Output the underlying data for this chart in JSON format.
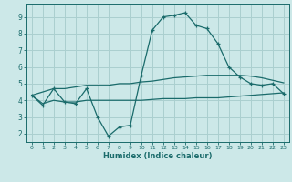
{
  "xlabel": "Humidex (Indice chaleur)",
  "background_color": "#cce8e8",
  "grid_color": "#aacfcf",
  "line_color": "#1a6b6b",
  "xlim": [
    -0.5,
    23.5
  ],
  "ylim": [
    1.5,
    9.8
  ],
  "xticks": [
    0,
    1,
    2,
    3,
    4,
    5,
    6,
    7,
    8,
    9,
    10,
    11,
    12,
    13,
    14,
    15,
    16,
    17,
    18,
    19,
    20,
    21,
    22,
    23
  ],
  "yticks": [
    2,
    3,
    4,
    5,
    6,
    7,
    8,
    9
  ],
  "line1_x": [
    0,
    1,
    2,
    3,
    4,
    5,
    6,
    7,
    8,
    9,
    10,
    11,
    12,
    13,
    14,
    15,
    16,
    17,
    18,
    19,
    20,
    21,
    22,
    23
  ],
  "line1_y": [
    4.3,
    3.7,
    4.7,
    3.9,
    3.8,
    4.7,
    3.0,
    1.85,
    2.4,
    2.5,
    5.5,
    8.2,
    9.0,
    9.1,
    9.25,
    8.5,
    8.3,
    7.4,
    6.0,
    5.4,
    5.0,
    4.9,
    5.0,
    4.4
  ],
  "line2_x": [
    0,
    2,
    3,
    4,
    5,
    6,
    7,
    8,
    9,
    10,
    11,
    12,
    13,
    14,
    15,
    16,
    17,
    18,
    19,
    20,
    21,
    22,
    23
  ],
  "line2_y": [
    4.3,
    4.7,
    4.7,
    4.8,
    4.9,
    4.9,
    4.9,
    5.0,
    5.0,
    5.1,
    5.15,
    5.25,
    5.35,
    5.4,
    5.45,
    5.5,
    5.5,
    5.5,
    5.5,
    5.45,
    5.35,
    5.2,
    5.05
  ],
  "line3_x": [
    0,
    1,
    2,
    3,
    4,
    5,
    6,
    7,
    8,
    9,
    10,
    11,
    12,
    13,
    14,
    15,
    16,
    17,
    18,
    19,
    20,
    21,
    22,
    23
  ],
  "line3_y": [
    4.3,
    3.8,
    4.0,
    3.9,
    3.9,
    4.0,
    4.0,
    4.0,
    4.0,
    4.0,
    4.0,
    4.05,
    4.1,
    4.1,
    4.1,
    4.15,
    4.15,
    4.15,
    4.2,
    4.25,
    4.3,
    4.35,
    4.4,
    4.45
  ]
}
